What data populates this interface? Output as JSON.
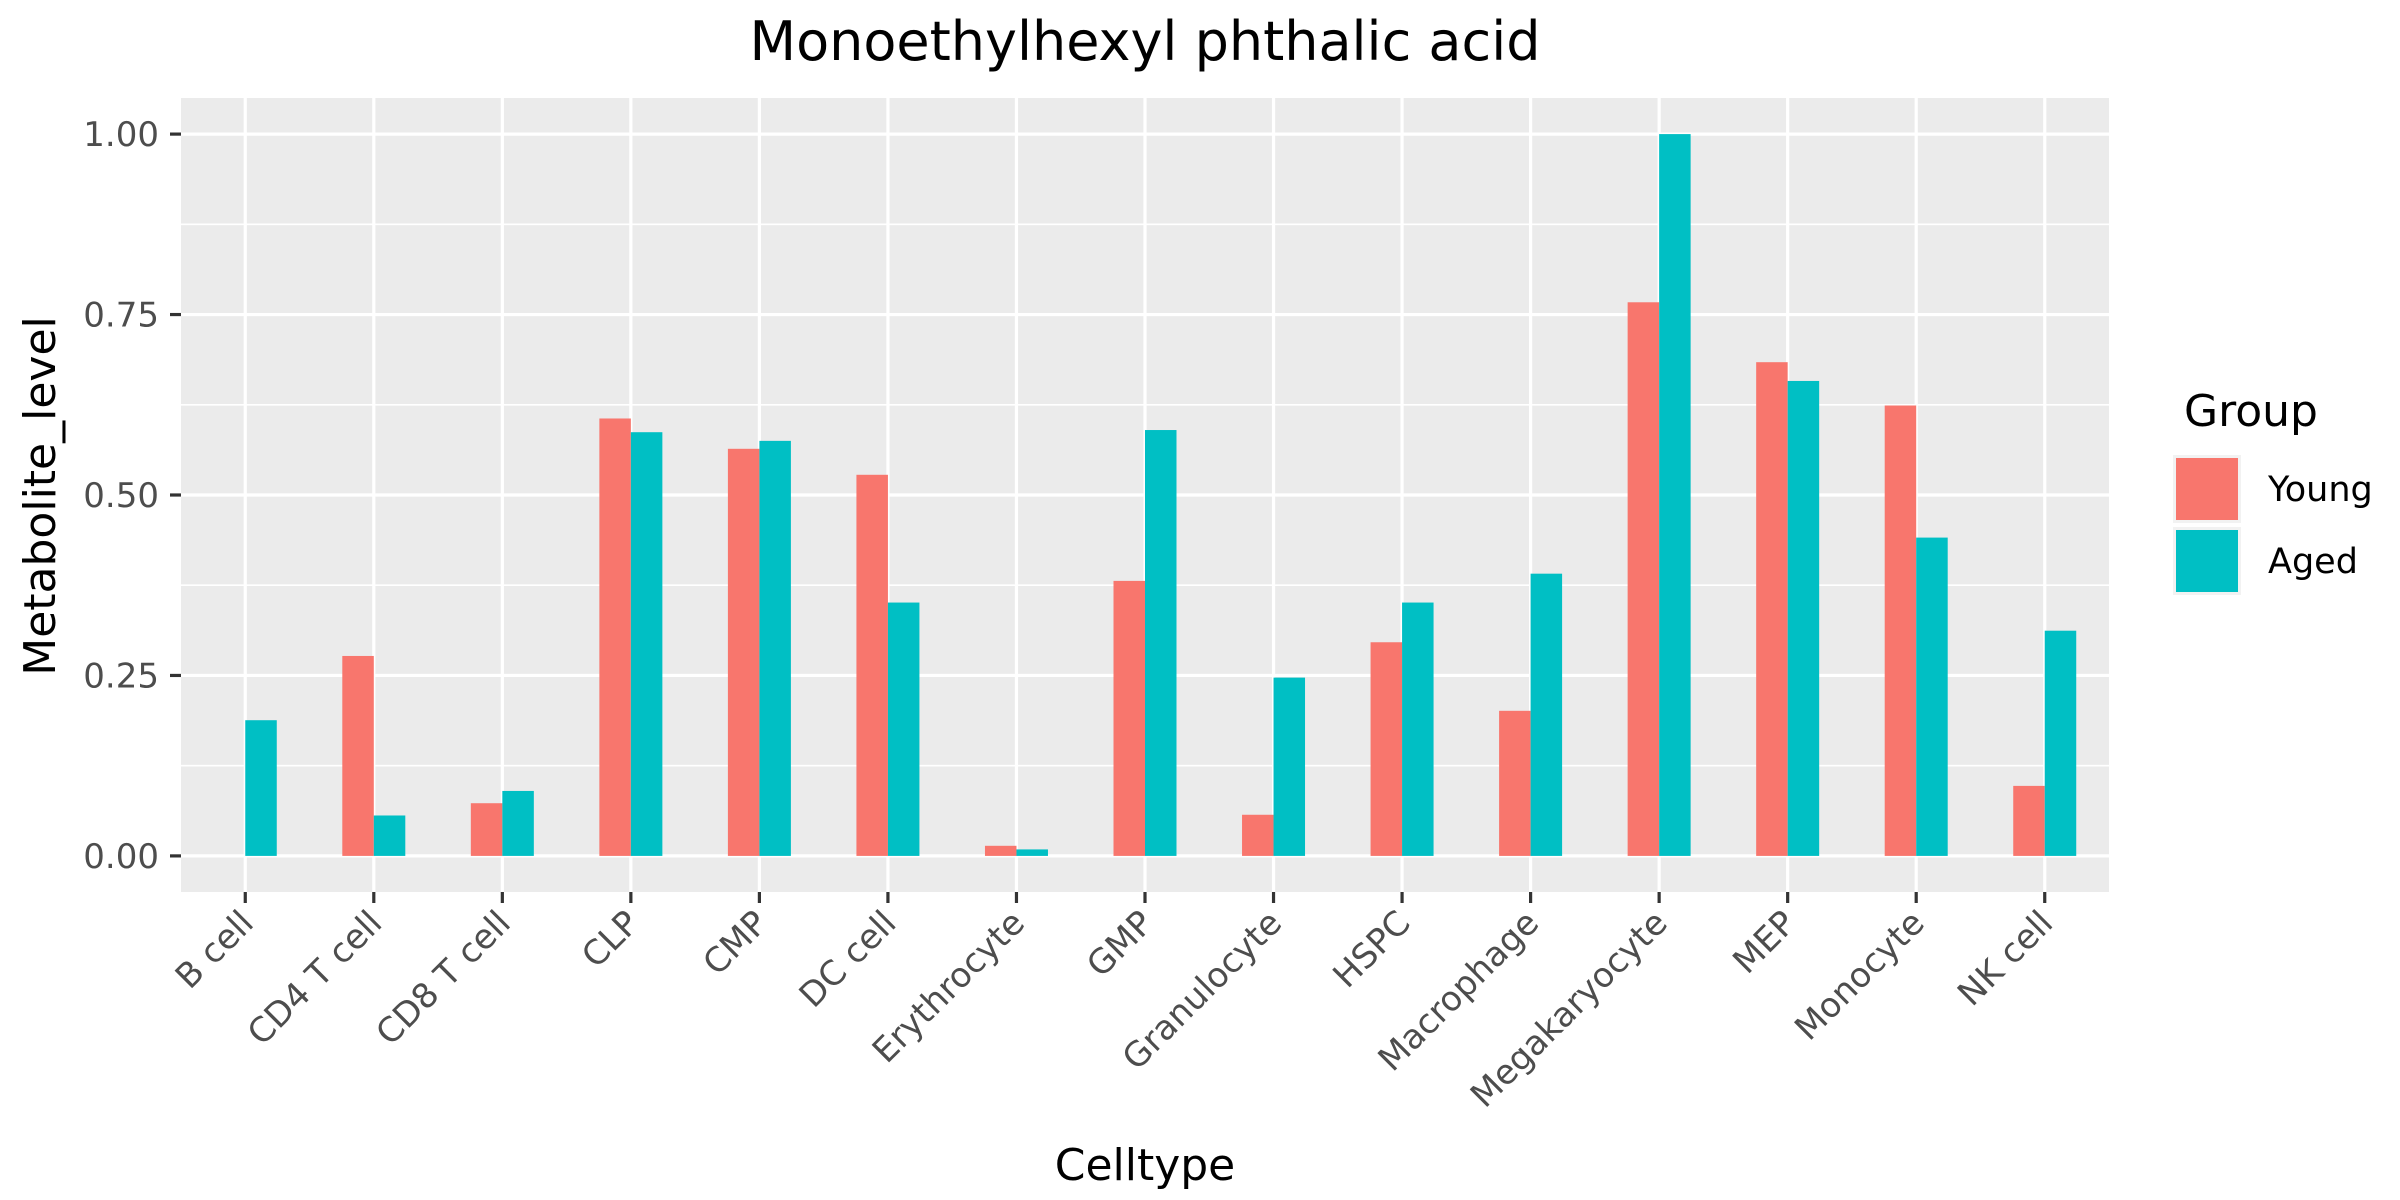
{
  "chart_data": {
    "type": "bar",
    "title": "Monoethylhexyl phthalic acid",
    "xlabel": "Celltype",
    "ylabel": "Metabolite_level",
    "categories": [
      "B cell",
      "CD4 T cell",
      "CD8 T cell",
      "CLP",
      "CMP",
      "DC cell",
      "Erythrocyte",
      "GMP",
      "Granulocyte",
      "HSPC",
      "Macrophage",
      "Megakaryocyte",
      "MEP",
      "Monocyte",
      "NK cell"
    ],
    "series": [
      {
        "name": "Young",
        "color": "#F8766D",
        "values": [
          0.0,
          0.277,
          0.073,
          0.606,
          0.564,
          0.528,
          0.014,
          0.381,
          0.057,
          0.296,
          0.201,
          0.767,
          0.684,
          0.624,
          0.097
        ]
      },
      {
        "name": "Aged",
        "color": "#00BFC4",
        "values": [
          0.188,
          0.056,
          0.09,
          0.587,
          0.575,
          0.351,
          0.009,
          0.59,
          0.247,
          0.351,
          0.391,
          1.0,
          0.658,
          0.441,
          0.312
        ]
      }
    ],
    "ylim": [
      -0.05,
      1.05
    ],
    "yticks": [
      0.0,
      0.25,
      0.5,
      0.75,
      1.0
    ],
    "ytick_labels": [
      "0.00",
      "0.25",
      "0.50",
      "0.75",
      "1.00"
    ],
    "grid": true,
    "legend": {
      "title": "Group",
      "placement": "right"
    },
    "panel_background": "#EBEBEB",
    "grid_color": "#FFFFFF"
  }
}
